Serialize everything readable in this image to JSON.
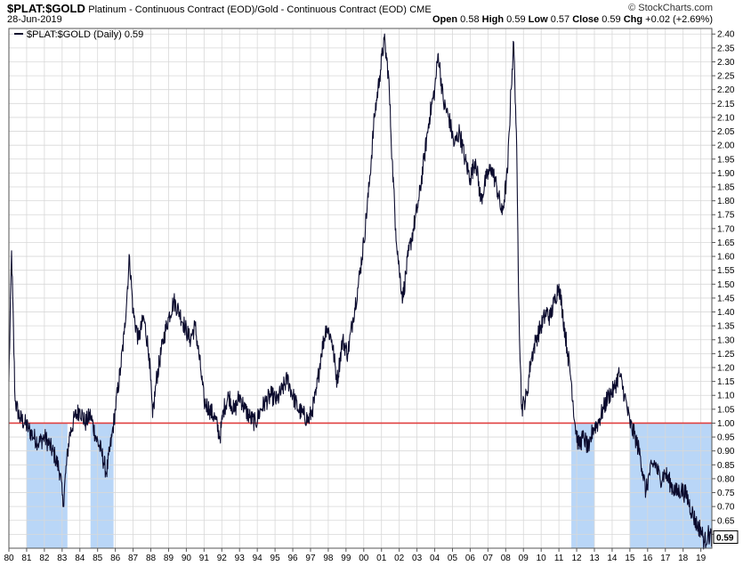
{
  "header": {
    "symbol": "$PLAT:$GOLD",
    "description": "Platinum - Continuous Contract (EOD)/Gold - Continuous Contract (EOD)",
    "exchange": "CME",
    "date": "28-Jun-2019",
    "brand": "© StockCharts.com",
    "ohlc": {
      "open_label": "Open",
      "open": "0.58",
      "high_label": "High",
      "high": "0.59",
      "low_label": "Low",
      "low": "0.57",
      "close_label": "Close",
      "close": "0.59",
      "chg_label": "Chg",
      "chg": "+0.02 (+2.69%)"
    }
  },
  "colors": {
    "line": "#0b0b2e",
    "reference": "#e04040",
    "shade": "#b9d6f7",
    "grid": "#d8d8d8"
  },
  "chart_data": {
    "type": "line",
    "legend": "$PLAT:$GOLD (Daily) 0.59",
    "last_value_label": "0.59",
    "reference_line": 1.0,
    "ylim": [
      0.55,
      2.42
    ],
    "y_ticks": [
      "0.60",
      "0.65",
      "0.70",
      "0.75",
      "0.80",
      "0.85",
      "0.90",
      "0.95",
      "1.00",
      "1.05",
      "1.10",
      "1.15",
      "1.20",
      "1.25",
      "1.30",
      "1.35",
      "1.40",
      "1.45",
      "1.50",
      "1.55",
      "1.60",
      "1.65",
      "1.70",
      "1.75",
      "1.80",
      "1.85",
      "1.90",
      "1.95",
      "2.00",
      "2.05",
      "2.10",
      "2.15",
      "2.20",
      "2.25",
      "2.30",
      "2.35",
      "2.40"
    ],
    "x_ticks": [
      "80",
      "81",
      "82",
      "83",
      "84",
      "85",
      "86",
      "87",
      "88",
      "89",
      "90",
      "91",
      "92",
      "93",
      "94",
      "95",
      "96",
      "97",
      "98",
      "99",
      "00",
      "01",
      "02",
      "03",
      "04",
      "05",
      "06",
      "07",
      "08",
      "09",
      "10",
      "11",
      "12",
      "13",
      "14",
      "15",
      "16",
      "17",
      "18",
      "19"
    ],
    "xlim": [
      1980.0,
      2019.62
    ],
    "shaded_periods": [
      [
        1981.0,
        1983.3
      ],
      [
        1984.6,
        1985.9
      ],
      [
        2011.7,
        2013.0
      ],
      [
        2015.0,
        2019.62
      ]
    ],
    "series": [
      {
        "values": [
          [
            1980.0,
            1.15
          ],
          [
            1980.15,
            1.62
          ],
          [
            1980.35,
            1.08
          ],
          [
            1980.6,
            1.02
          ],
          [
            1980.9,
            1.0
          ],
          [
            1981.1,
            0.98
          ],
          [
            1981.4,
            0.95
          ],
          [
            1981.7,
            0.93
          ],
          [
            1982.0,
            0.95
          ],
          [
            1982.3,
            0.92
          ],
          [
            1982.6,
            0.88
          ],
          [
            1982.9,
            0.82
          ],
          [
            1983.05,
            0.7
          ],
          [
            1983.2,
            0.82
          ],
          [
            1983.4,
            0.95
          ],
          [
            1983.7,
            1.02
          ],
          [
            1984.0,
            1.05
          ],
          [
            1984.3,
            1.0
          ],
          [
            1984.6,
            1.03
          ],
          [
            1984.9,
            0.95
          ],
          [
            1985.2,
            0.9
          ],
          [
            1985.5,
            0.82
          ],
          [
            1985.8,
            0.95
          ],
          [
            1986.0,
            1.05
          ],
          [
            1986.3,
            1.2
          ],
          [
            1986.5,
            1.32
          ],
          [
            1986.8,
            1.6
          ],
          [
            1987.0,
            1.4
          ],
          [
            1987.3,
            1.3
          ],
          [
            1987.6,
            1.38
          ],
          [
            1987.9,
            1.25
          ],
          [
            1988.1,
            1.02
          ],
          [
            1988.3,
            1.15
          ],
          [
            1988.7,
            1.3
          ],
          [
            1989.0,
            1.38
          ],
          [
            1989.3,
            1.44
          ],
          [
            1989.6,
            1.4
          ],
          [
            1989.9,
            1.35
          ],
          [
            1990.2,
            1.3
          ],
          [
            1990.5,
            1.35
          ],
          [
            1990.8,
            1.2
          ],
          [
            1991.0,
            1.08
          ],
          [
            1991.3,
            1.05
          ],
          [
            1991.6,
            1.02
          ],
          [
            1991.9,
            0.95
          ],
          [
            1992.1,
            1.05
          ],
          [
            1992.4,
            1.1
          ],
          [
            1992.7,
            1.04
          ],
          [
            1993.0,
            1.1
          ],
          [
            1993.3,
            1.05
          ],
          [
            1993.6,
            1.02
          ],
          [
            1993.9,
            1.0
          ],
          [
            1994.2,
            1.05
          ],
          [
            1994.5,
            1.08
          ],
          [
            1994.8,
            1.1
          ],
          [
            1995.1,
            1.08
          ],
          [
            1995.4,
            1.12
          ],
          [
            1995.7,
            1.16
          ],
          [
            1996.0,
            1.1
          ],
          [
            1996.3,
            1.05
          ],
          [
            1996.6,
            1.03
          ],
          [
            1996.9,
            1.01
          ],
          [
            1997.1,
            1.05
          ],
          [
            1997.3,
            1.1
          ],
          [
            1997.6,
            1.25
          ],
          [
            1997.9,
            1.35
          ],
          [
            1998.2,
            1.3
          ],
          [
            1998.5,
            1.15
          ],
          [
            1998.8,
            1.3
          ],
          [
            1999.1,
            1.25
          ],
          [
            1999.4,
            1.38
          ],
          [
            1999.7,
            1.5
          ],
          [
            2000.0,
            1.65
          ],
          [
            2000.3,
            1.85
          ],
          [
            2000.6,
            2.1
          ],
          [
            2000.9,
            2.25
          ],
          [
            2001.15,
            2.38
          ],
          [
            2001.4,
            2.25
          ],
          [
            2001.6,
            1.95
          ],
          [
            2001.8,
            1.7
          ],
          [
            2002.0,
            1.55
          ],
          [
            2002.2,
            1.45
          ],
          [
            2002.5,
            1.6
          ],
          [
            2002.8,
            1.7
          ],
          [
            2003.1,
            1.8
          ],
          [
            2003.4,
            1.95
          ],
          [
            2003.7,
            2.1
          ],
          [
            2004.0,
            2.2
          ],
          [
            2004.2,
            2.33
          ],
          [
            2004.5,
            2.15
          ],
          [
            2004.8,
            2.1
          ],
          [
            2005.1,
            2.0
          ],
          [
            2005.4,
            2.05
          ],
          [
            2005.7,
            1.95
          ],
          [
            2006.0,
            1.88
          ],
          [
            2006.3,
            1.95
          ],
          [
            2006.6,
            1.8
          ],
          [
            2006.9,
            1.88
          ],
          [
            2007.2,
            1.92
          ],
          [
            2007.5,
            1.85
          ],
          [
            2007.8,
            1.75
          ],
          [
            2008.1,
            1.9
          ],
          [
            2008.3,
            2.2
          ],
          [
            2008.45,
            2.37
          ],
          [
            2008.6,
            2.05
          ],
          [
            2008.75,
            1.4
          ],
          [
            2008.9,
            1.05
          ],
          [
            2009.05,
            1.08
          ],
          [
            2009.2,
            1.1
          ],
          [
            2009.4,
            1.22
          ],
          [
            2009.7,
            1.3
          ],
          [
            2010.0,
            1.35
          ],
          [
            2010.3,
            1.4
          ],
          [
            2010.5,
            1.38
          ],
          [
            2010.8,
            1.45
          ],
          [
            2011.0,
            1.5
          ],
          [
            2011.2,
            1.4
          ],
          [
            2011.5,
            1.25
          ],
          [
            2011.7,
            1.15
          ],
          [
            2011.9,
            1.0
          ],
          [
            2012.1,
            0.92
          ],
          [
            2012.4,
            0.95
          ],
          [
            2012.7,
            0.9
          ],
          [
            2012.9,
            0.98
          ],
          [
            2013.2,
            1.0
          ],
          [
            2013.5,
            1.05
          ],
          [
            2013.8,
            1.1
          ],
          [
            2014.1,
            1.12
          ],
          [
            2014.4,
            1.18
          ],
          [
            2014.7,
            1.1
          ],
          [
            2015.0,
            1.0
          ],
          [
            2015.3,
            0.95
          ],
          [
            2015.6,
            0.88
          ],
          [
            2015.9,
            0.75
          ],
          [
            2016.1,
            0.82
          ],
          [
            2016.4,
            0.86
          ],
          [
            2016.7,
            0.8
          ],
          [
            2017.0,
            0.82
          ],
          [
            2017.3,
            0.78
          ],
          [
            2017.6,
            0.75
          ],
          [
            2017.9,
            0.76
          ],
          [
            2018.2,
            0.74
          ],
          [
            2018.5,
            0.68
          ],
          [
            2018.8,
            0.63
          ],
          [
            2019.0,
            0.62
          ],
          [
            2019.2,
            0.57
          ],
          [
            2019.4,
            0.6
          ],
          [
            2019.62,
            0.59
          ]
        ]
      }
    ]
  }
}
